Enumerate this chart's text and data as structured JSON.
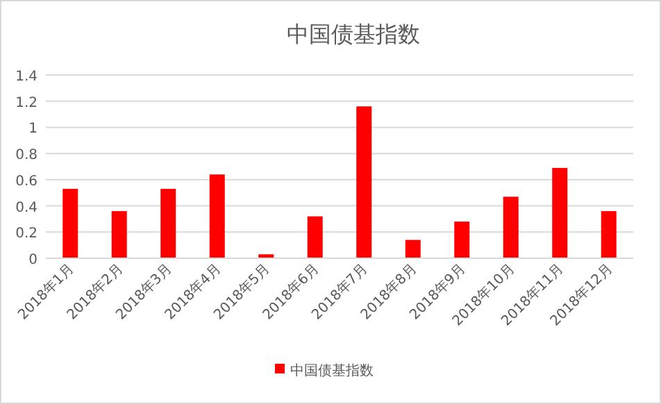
{
  "chart_data": {
    "type": "bar",
    "title": "中国债基指数",
    "categories": [
      "2018年1月",
      "2018年2月",
      "2018年3月",
      "2018年4月",
      "2018年5月",
      "2018年6月",
      "2018年7月",
      "2018年8月",
      "2018年9月",
      "2018年10月",
      "2018年11月",
      "2018年12月"
    ],
    "series": [
      {
        "name": "中国债基指数",
        "color": "#ff0000",
        "values": [
          0.53,
          0.36,
          0.53,
          0.64,
          0.03,
          0.32,
          1.16,
          0.14,
          0.28,
          0.47,
          0.69,
          0.36
        ]
      }
    ],
    "ylim": [
      0,
      1.4
    ],
    "yticks": [
      0,
      0.2,
      0.4,
      0.6,
      0.8,
      1,
      1.2,
      1.4
    ],
    "grid": "y",
    "legend": "bottom"
  }
}
